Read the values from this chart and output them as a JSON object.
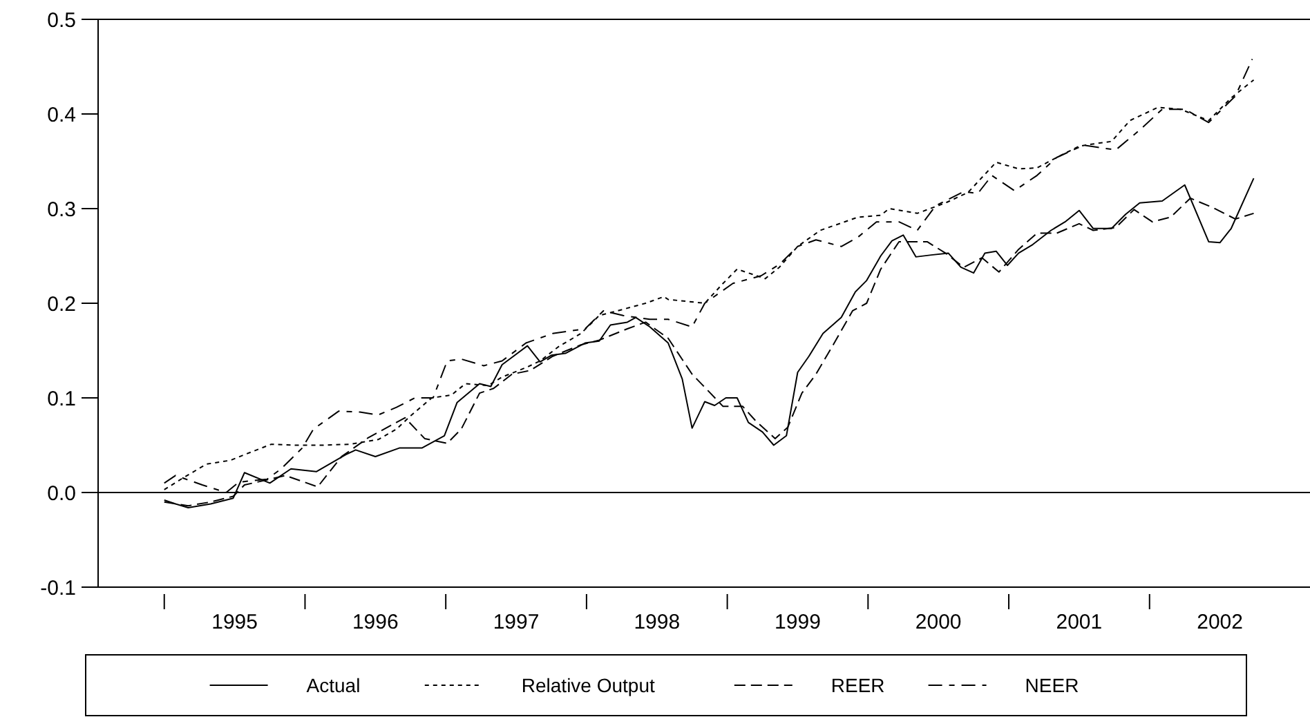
{
  "chart_data": {
    "type": "line",
    "xlim": [
      1994.53,
      2003.14
    ],
    "ylim": [
      -0.1,
      0.5
    ],
    "xticks": [
      {
        "value": 1995,
        "label": null
      },
      {
        "value": 1995.5,
        "label": "1995"
      },
      {
        "value": 1996,
        "label": null
      },
      {
        "value": 1996.5,
        "label": "1996"
      },
      {
        "value": 1997,
        "label": null
      },
      {
        "value": 1997.5,
        "label": "1997"
      },
      {
        "value": 1998,
        "label": null
      },
      {
        "value": 1998.5,
        "label": "1998"
      },
      {
        "value": 1999,
        "label": null
      },
      {
        "value": 1999.5,
        "label": "1999"
      },
      {
        "value": 2000,
        "label": null
      },
      {
        "value": 2000.5,
        "label": "2000"
      },
      {
        "value": 2001,
        "label": null
      },
      {
        "value": 2001.5,
        "label": "2001"
      },
      {
        "value": 2002,
        "label": null
      },
      {
        "value": 2002.5,
        "label": "2002"
      }
    ],
    "yticks": [
      -0.1,
      {
        "value": 0,
        "label": "0.0"
      },
      0.1,
      0.2,
      0.3,
      0.4,
      0.5
    ],
    "ref_lines": [
      {
        "axis": "y",
        "value": 0,
        "color": "#000000"
      }
    ],
    "grid": false,
    "legend": "bottom",
    "series": [
      {
        "name": "Actual",
        "color": "#000000",
        "line_style": "solid",
        "x": [
          1995.0,
          1995.08,
          1995.17,
          1995.33,
          1995.49,
          1995.57,
          1995.75,
          1995.9,
          1996.08,
          1996.29,
          1996.36,
          1996.5,
          1996.67,
          1996.83,
          1996.99,
          1997.08,
          1997.24,
          1997.32,
          1997.4,
          1997.58,
          1997.67,
          1997.75,
          1997.85,
          1997.99,
          1998.09,
          1998.17,
          1998.29,
          1998.35,
          1998.45,
          1998.58,
          1998.68,
          1998.75,
          1998.84,
          1998.91,
          1998.99,
          1999.07,
          1999.15,
          1999.25,
          1999.33,
          1999.42,
          1999.5,
          1999.58,
          1999.68,
          1999.81,
          1999.91,
          1999.99,
          2000.09,
          2000.17,
          2000.25,
          2000.34,
          2000.45,
          2000.57,
          2000.66,
          2000.75,
          2000.83,
          2000.91,
          2000.99,
          2001.07,
          2001.17,
          2001.3,
          2001.4,
          2001.5,
          2001.6,
          2001.73,
          2001.83,
          2001.93,
          2002.09,
          2002.25,
          2002.42,
          2002.5,
          2002.58,
          2002.74
        ],
        "values": [
          -0.008,
          -0.012,
          -0.016,
          -0.012,
          -0.006,
          0.021,
          0.01,
          0.025,
          0.022,
          0.04,
          0.045,
          0.038,
          0.047,
          0.047,
          0.06,
          0.095,
          0.115,
          0.112,
          0.135,
          0.155,
          0.138,
          0.145,
          0.147,
          0.158,
          0.16,
          0.177,
          0.18,
          0.185,
          0.175,
          0.158,
          0.12,
          0.068,
          0.096,
          0.092,
          0.1,
          0.1,
          0.074,
          0.064,
          0.05,
          0.06,
          0.127,
          0.144,
          0.168,
          0.185,
          0.212,
          0.224,
          0.25,
          0.266,
          0.272,
          0.249,
          0.251,
          0.253,
          0.238,
          0.232,
          0.253,
          0.255,
          0.24,
          0.253,
          0.262,
          0.277,
          0.286,
          0.298,
          0.279,
          0.279,
          0.294,
          0.306,
          0.308,
          0.325,
          0.265,
          0.264,
          0.279,
          0.332
        ]
      },
      {
        "name": "Relative Output",
        "color": "#000000",
        "line_style": "dotted",
        "x": [
          1995.0,
          1995.14,
          1995.3,
          1995.47,
          1995.57,
          1995.76,
          1995.93,
          1996.12,
          1996.32,
          1996.52,
          1996.65,
          1996.75,
          1996.9,
          1997.04,
          1997.14,
          1997.3,
          1997.4,
          1997.57,
          1997.67,
          1997.8,
          1997.96,
          1998.09,
          1998.22,
          1998.42,
          1998.55,
          1998.58,
          1998.84,
          1998.97,
          1999.07,
          1999.27,
          1999.37,
          1999.5,
          1999.66,
          1999.93,
          2000.09,
          2000.15,
          2000.35,
          2000.55,
          2000.71,
          2000.91,
          2001.07,
          2001.2,
          2001.34,
          2001.5,
          2001.63,
          2001.73,
          2001.86,
          2002.06,
          2002.22,
          2002.42,
          2002.58,
          2002.74
        ],
        "values": [
          0.003,
          0.016,
          0.03,
          0.034,
          0.04,
          0.051,
          0.05,
          0.05,
          0.051,
          0.056,
          0.067,
          0.081,
          0.1,
          0.103,
          0.115,
          0.113,
          0.122,
          0.132,
          0.139,
          0.154,
          0.168,
          0.187,
          0.192,
          0.2,
          0.207,
          0.204,
          0.2,
          0.221,
          0.236,
          0.226,
          0.238,
          0.26,
          0.277,
          0.291,
          0.293,
          0.3,
          0.295,
          0.306,
          0.317,
          0.349,
          0.342,
          0.343,
          0.354,
          0.366,
          0.369,
          0.371,
          0.393,
          0.407,
          0.405,
          0.393,
          0.417,
          0.436
        ]
      },
      {
        "name": "REER",
        "color": "#000000",
        "line_style": "dashed",
        "x": [
          1995.0,
          1995.17,
          1995.33,
          1995.49,
          1995.57,
          1995.75,
          1995.86,
          1996.09,
          1996.26,
          1996.45,
          1996.71,
          1996.85,
          1997.01,
          1997.11,
          1997.24,
          1997.34,
          1997.47,
          1997.6,
          1997.76,
          1997.96,
          1998.09,
          1998.29,
          1998.42,
          1998.58,
          1998.75,
          1998.88,
          1998.97,
          1999.11,
          1999.2,
          1999.34,
          1999.43,
          1999.53,
          1999.63,
          1999.76,
          1999.89,
          1999.99,
          2000.09,
          2000.22,
          2000.42,
          2000.55,
          2000.68,
          2000.81,
          2000.93,
          2001.07,
          2001.2,
          2001.34,
          2001.5,
          2001.6,
          2001.76,
          2001.89,
          2002.02,
          2002.15,
          2002.29,
          2002.45,
          2002.61,
          2002.74
        ],
        "values": [
          -0.01,
          -0.014,
          -0.01,
          -0.004,
          0.008,
          0.014,
          0.018,
          0.006,
          0.038,
          0.058,
          0.079,
          0.057,
          0.052,
          0.067,
          0.105,
          0.11,
          0.125,
          0.129,
          0.144,
          0.156,
          0.161,
          0.173,
          0.18,
          0.163,
          0.125,
          0.105,
          0.091,
          0.091,
          0.076,
          0.057,
          0.069,
          0.105,
          0.125,
          0.158,
          0.192,
          0.2,
          0.236,
          0.265,
          0.265,
          0.253,
          0.238,
          0.248,
          0.233,
          0.257,
          0.274,
          0.274,
          0.284,
          0.277,
          0.28,
          0.299,
          0.286,
          0.291,
          0.311,
          0.301,
          0.289,
          0.295
        ]
      },
      {
        "name": "NEER",
        "color": "#000000",
        "line_style": "dashed",
        "x": [
          1995.0,
          1995.08,
          1995.27,
          1995.44,
          1995.53,
          1995.73,
          1995.83,
          1995.98,
          1996.06,
          1996.24,
          1996.39,
          1996.52,
          1996.65,
          1996.78,
          1996.91,
          1997.01,
          1997.11,
          1997.27,
          1997.4,
          1997.57,
          1997.76,
          1997.99,
          1998.12,
          1998.26,
          1998.45,
          1998.58,
          1998.75,
          1998.84,
          1999.04,
          1999.24,
          1999.37,
          1999.5,
          1999.63,
          1999.81,
          1999.93,
          2000.06,
          2000.22,
          2000.35,
          2000.48,
          2000.68,
          2000.78,
          2000.88,
          2001.04,
          2001.2,
          2001.34,
          2001.53,
          2001.76,
          2001.93,
          2002.09,
          2002.25,
          2002.42,
          2002.61,
          2002.73
        ],
        "values": [
          0.01,
          0.018,
          0.008,
          0.0,
          0.011,
          0.014,
          0.025,
          0.047,
          0.067,
          0.086,
          0.085,
          0.082,
          0.09,
          0.1,
          0.1,
          0.139,
          0.141,
          0.134,
          0.139,
          0.158,
          0.168,
          0.173,
          0.192,
          0.187,
          0.183,
          0.183,
          0.175,
          0.2,
          0.221,
          0.229,
          0.241,
          0.26,
          0.267,
          0.26,
          0.27,
          0.286,
          0.286,
          0.277,
          0.303,
          0.318,
          0.316,
          0.335,
          0.319,
          0.335,
          0.354,
          0.367,
          0.362,
          0.383,
          0.405,
          0.405,
          0.391,
          0.419,
          0.458
        ]
      }
    ]
  }
}
